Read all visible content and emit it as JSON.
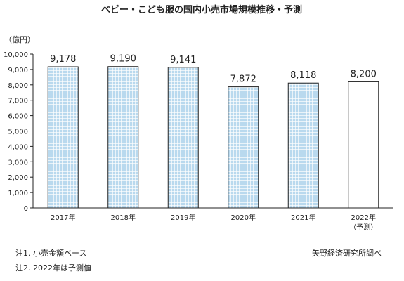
{
  "chart_data": {
    "type": "bar",
    "title": "ベビー・こども服の国内小売市場規模推移・予測",
    "unit_label": "（億円）",
    "xlabel": "",
    "ylabel": "",
    "categories": [
      "2017年",
      "2018年",
      "2019年",
      "2020年",
      "2021年",
      "2022年"
    ],
    "category_sub_labels": [
      "",
      "",
      "",
      "",
      "",
      "（予測）"
    ],
    "values": [
      9178,
      9190,
      9141,
      7872,
      8118,
      8200
    ],
    "value_labels": [
      "9,178",
      "9,190",
      "9,141",
      "7,872",
      "8,118",
      "8,200"
    ],
    "forecast": [
      false,
      false,
      false,
      false,
      false,
      true
    ],
    "ylim": [
      0,
      10000
    ],
    "yticks": [
      0,
      1000,
      2000,
      3000,
      4000,
      5000,
      6000,
      7000,
      8000,
      9000,
      10000
    ],
    "ytick_labels": [
      "0",
      "1,000",
      "2,000",
      "3,000",
      "4,000",
      "5,000",
      "6,000",
      "7,000",
      "8,000",
      "9,000",
      "10,000"
    ],
    "grid": false,
    "legend": "none",
    "colors": {
      "actual_fill": "#b9d9ee",
      "actual_pattern_line": "#ffffff",
      "bar_stroke": "#222222",
      "forecast_fill": "#ffffff",
      "axis": "#222222"
    }
  },
  "footer": {
    "note_1": "注1. 小売金額ベース",
    "note_2": "注2. 2022年は予測値",
    "source": "矢野経済研究所調べ"
  }
}
